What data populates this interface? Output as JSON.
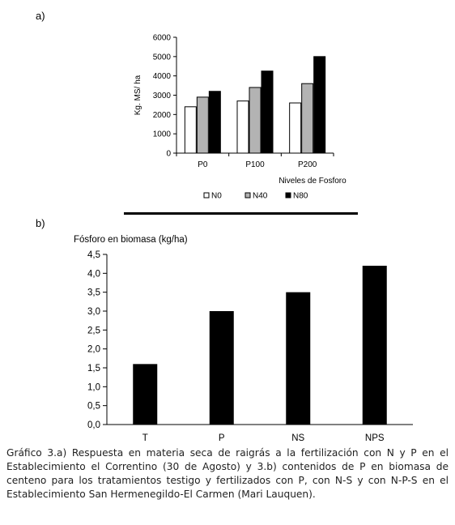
{
  "panel_a_label": "a)",
  "panel_b_label": "b)",
  "caption": "Gráfico 3.a) Respuesta en materia seca de raigrás a la fertilización con N y P en el Establecimiento el Correntino (30 de Agosto) y 3.b) contenidos de P en biomasa de centeno para los tratamientos testigo y fertilizados con P, con N-S y con N-P-S en el Establecimiento San Hermenegildo-El Carmen (Mari Lauquen).",
  "chart_data": [
    {
      "type": "bar",
      "categories": [
        "P0",
        "P100",
        "P200"
      ],
      "series": [
        {
          "name": "N0",
          "values": [
            2400,
            2700,
            2600
          ],
          "color": "#ffffff"
        },
        {
          "name": "N40",
          "values": [
            2900,
            3400,
            3600
          ],
          "color": "#b3b3b3"
        },
        {
          "name": "N80",
          "values": [
            3200,
            4250,
            5000
          ],
          "color": "#000000"
        }
      ],
      "ylabel": "Kg. MS/ ha",
      "xlabel": "Niveles de Fosforo",
      "ylim": [
        0,
        6000
      ],
      "yticks": [
        "0",
        "1000",
        "2000",
        "3000",
        "4000",
        "5000",
        "6000"
      ],
      "legend": "bottom",
      "grid": false
    },
    {
      "type": "bar",
      "categories": [
        "T",
        "P",
        "NS",
        "NPS"
      ],
      "values": [
        1.6,
        3.0,
        3.5,
        4.2
      ],
      "color": "#000000",
      "ylabel": "Fósforo en biomasa (kg/ha)",
      "ylim": [
        0,
        4.5
      ],
      "yticks": [
        "0,0",
        "0,5",
        "1,0",
        "1,5",
        "2,0",
        "2,5",
        "3,0",
        "3,5",
        "4,0",
        "4,5"
      ],
      "grid": false
    }
  ]
}
